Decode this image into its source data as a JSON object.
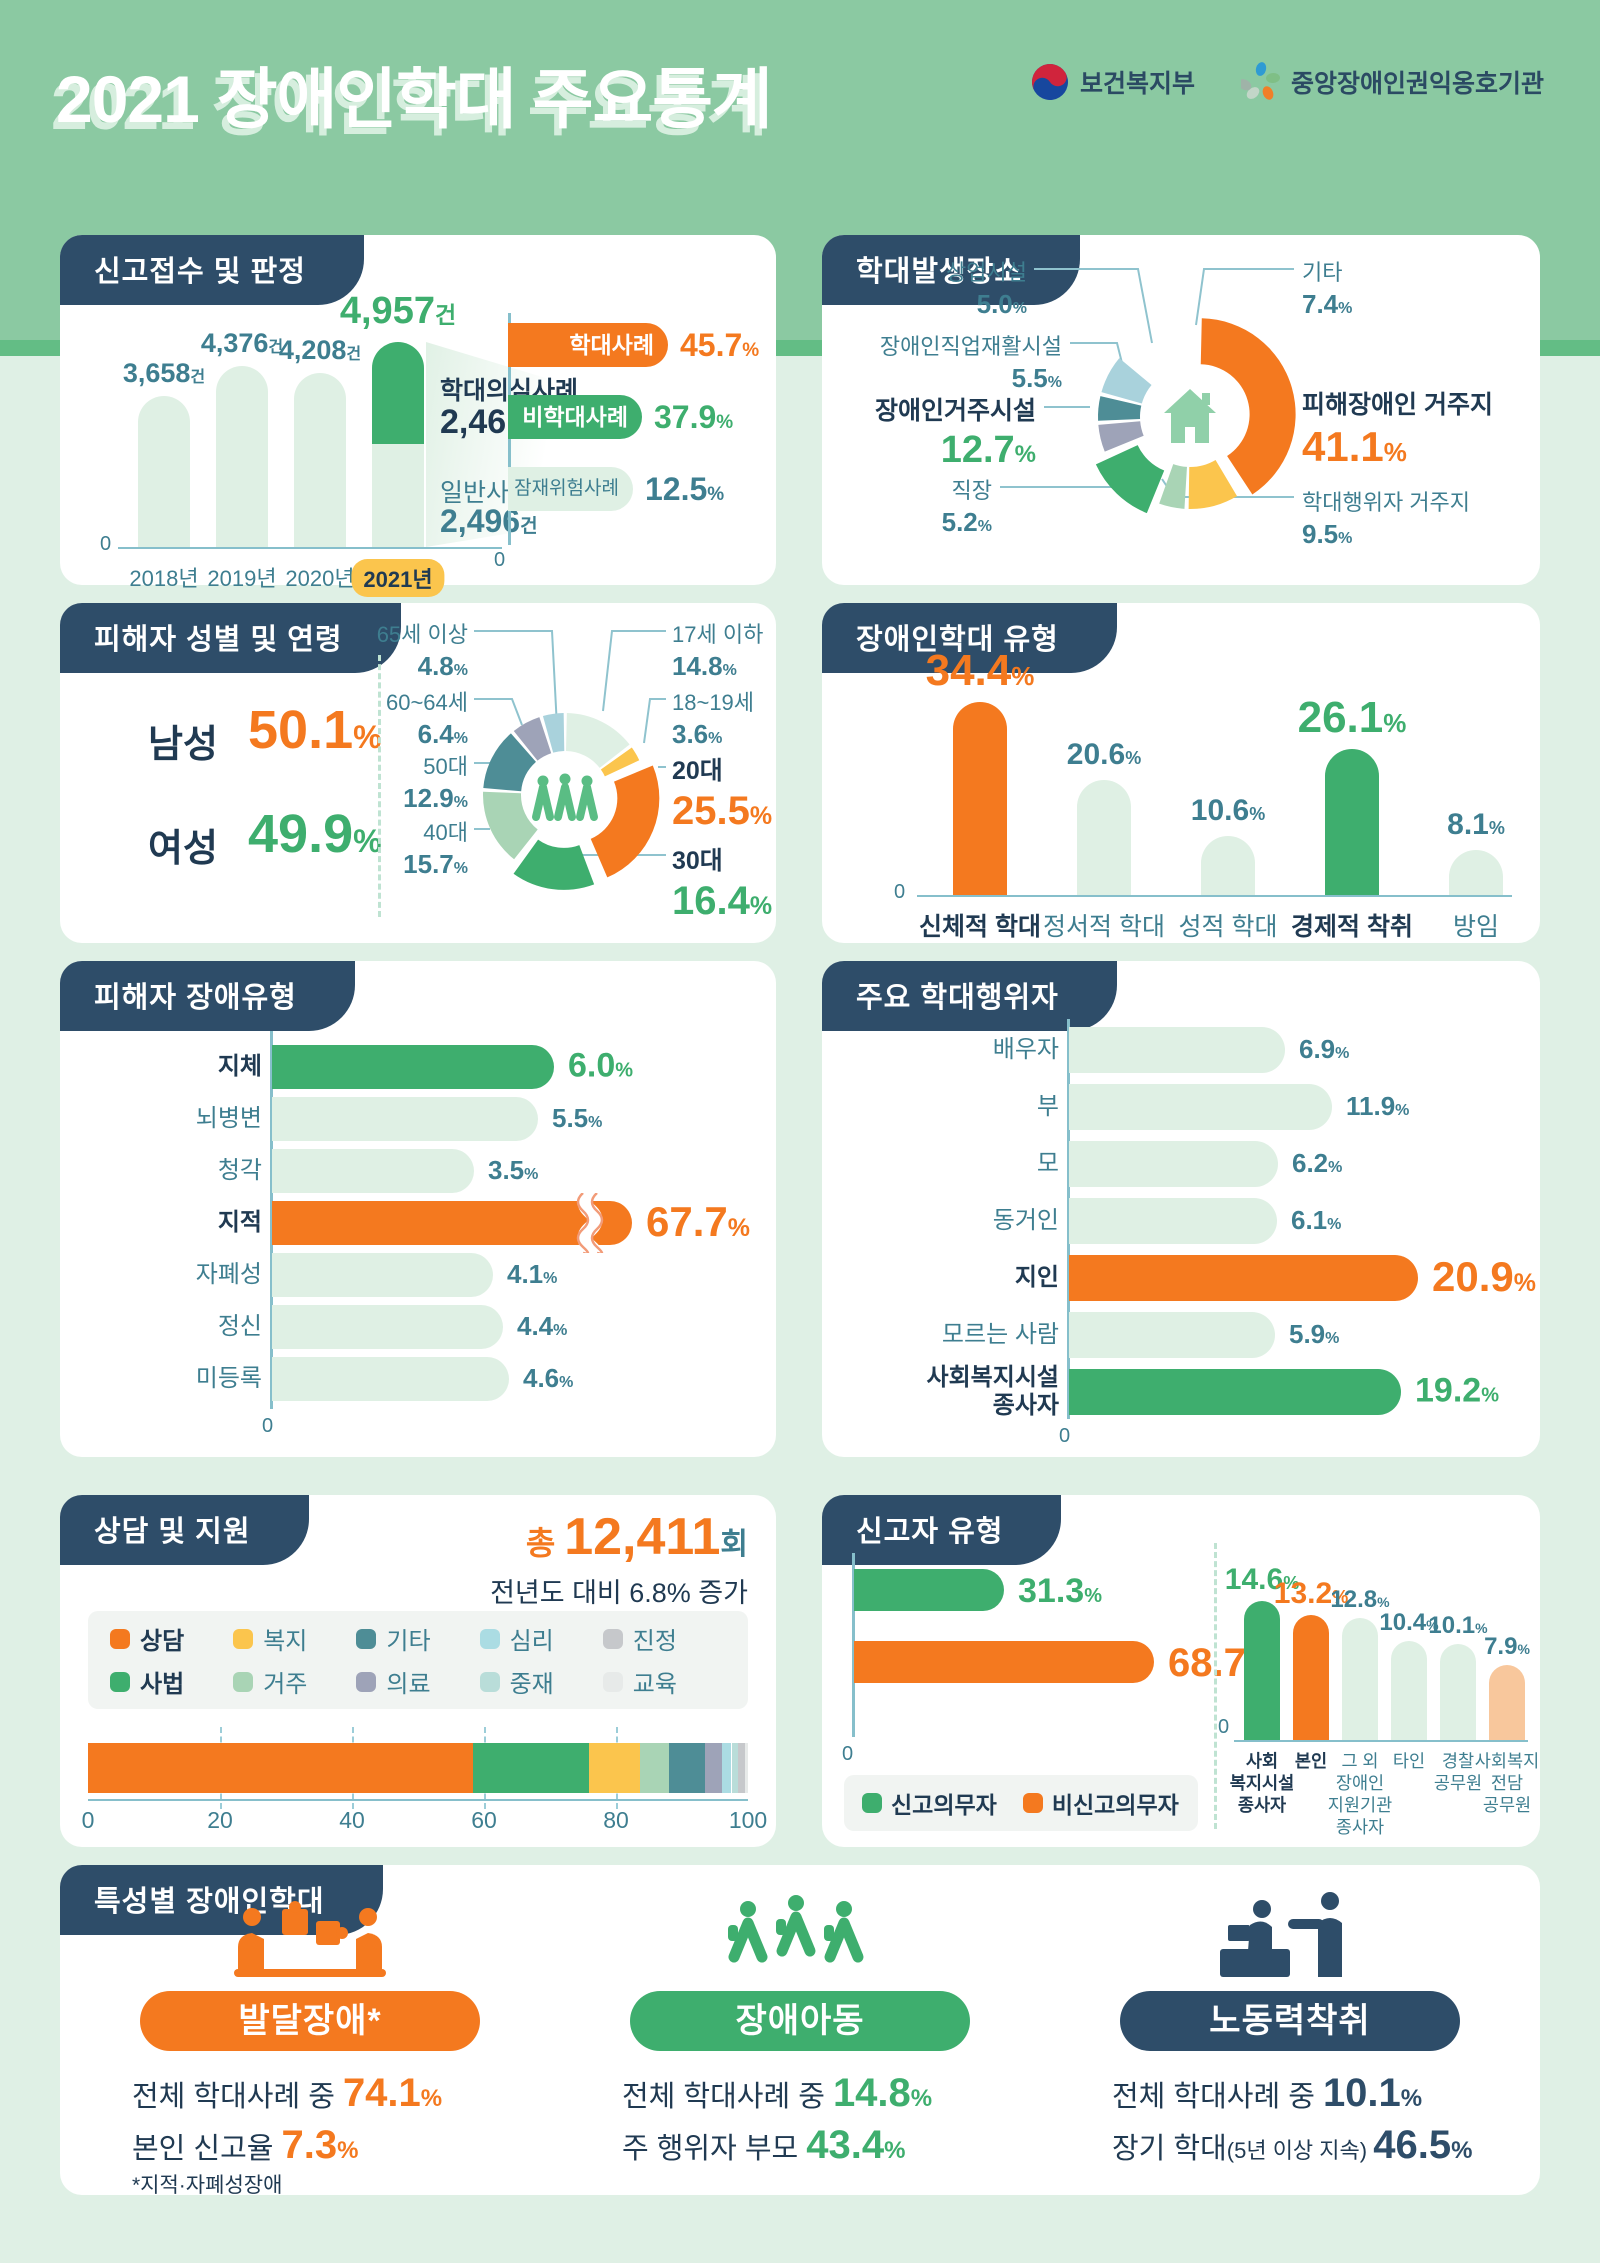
{
  "page": {
    "title_year": "2021",
    "title": "장애인학대 주요통계",
    "logo1": "보건복지부",
    "logo2": "중앙장애인권익옹호기관"
  },
  "colors": {
    "orange": "#F4791F",
    "green": "#3EAE6E",
    "light": "#DFF0E4",
    "sage": "#A9D4B5",
    "yellow": "#FBC54D",
    "teal_dark": "#4E8D96",
    "gray_purple": "#9EA3B8",
    "light_blue": "#A9D2DC",
    "light_cyan": "#ABDCE3",
    "light_teal": "#B9DDD9",
    "gray": "#C6C8CB",
    "pale": "#E7EAE9",
    "peach": "#F8C79C",
    "navy": "#2E4D69",
    "ink": "#203A52",
    "teal_text": "#3E7E90",
    "axis": "#86BFCB",
    "legend_bg": "#F1F4F2",
    "band": "#8BC9A2",
    "page_bg": "#DFF0E5"
  },
  "panels": {
    "report": "신고접수 및 판정",
    "place": "학대발생장소",
    "victim": "피해자 성별 및 연령",
    "types": "장애인학대 유형",
    "disability": "피해자 장애유형",
    "abuser": "주요 학대행위자",
    "counsel": "상담 및 지원",
    "reporter": "신고자 유형",
    "special": "특성별 장애인학대"
  },
  "chart_data": [
    {
      "id": "report_trend",
      "type": "bar",
      "title": "신고접수 및 판정",
      "unit": "건",
      "zero": "0",
      "categories": [
        "2018년",
        "2019년",
        "2020년",
        "2021년"
      ],
      "values": [
        3658,
        4376,
        4208,
        4957
      ],
      "value_labels": [
        "3,658",
        "4,376",
        "4,208",
        "4,957"
      ],
      "highlight_index": 3,
      "split": {
        "top_label": "학대의심사례",
        "top_value": 2461,
        "top_value_label": "2,461",
        "bottom_label": "일반사례",
        "bottom_value": 2496,
        "bottom_value_label": "2,496"
      }
    },
    {
      "id": "judgement",
      "type": "bar-h",
      "zero": "0",
      "items": [
        {
          "label": "학대사례",
          "value": 45.7,
          "color": "orange"
        },
        {
          "label": "비학대사례",
          "value": 37.9,
          "color": "green"
        },
        {
          "label": "잠재위험사례",
          "value": 12.5,
          "color": "light"
        }
      ]
    },
    {
      "id": "place",
      "type": "donut",
      "title": "학대발생장소",
      "center_icon": "house",
      "items": [
        {
          "label": "피해장애인 거주지",
          "value": 41.1,
          "color": "orange",
          "emph": true
        },
        {
          "label": "학대행위자 거주지",
          "value": 9.5,
          "color": "yellow"
        },
        {
          "label": "직장",
          "value": 5.2,
          "color": "sage"
        },
        {
          "label": "장애인거주시설",
          "value": 12.7,
          "color": "green",
          "emph": true
        },
        {
          "label": "장애인직업재활시설",
          "value": 5.5,
          "color": "gray_purple"
        },
        {
          "label": "상업시설",
          "value": 5.0,
          "color": "teal_dark"
        },
        {
          "label": "기타",
          "value": 7.4,
          "color": "light_blue"
        }
      ]
    },
    {
      "id": "gender",
      "type": "stat",
      "items": [
        {
          "label": "남성",
          "value": "50.1",
          "color": "orange"
        },
        {
          "label": "여성",
          "value": "49.9",
          "color": "green"
        }
      ]
    },
    {
      "id": "age",
      "type": "donut",
      "center_icon": "people",
      "items": [
        {
          "label": "17세 이하",
          "value": 14.8,
          "color": "light"
        },
        {
          "label": "18~19세",
          "value": 3.6,
          "color": "yellow"
        },
        {
          "label": "20대",
          "value": 25.5,
          "color": "orange",
          "emph": true
        },
        {
          "label": "30대",
          "value": 16.4,
          "color": "green",
          "emph": true
        },
        {
          "label": "40대",
          "value": 15.7,
          "color": "sage"
        },
        {
          "label": "50대",
          "value": 12.9,
          "color": "teal_dark"
        },
        {
          "label": "60~64세",
          "value": 6.4,
          "color": "gray_purple"
        },
        {
          "label": "65세 이상",
          "value": 4.8,
          "color": "light_blue"
        }
      ]
    },
    {
      "id": "abuse_types",
      "type": "bar",
      "zero": "0",
      "items": [
        {
          "label": "신체적 학대",
          "value": 34.4,
          "color": "orange",
          "emph": true
        },
        {
          "label": "정서적 학대",
          "value": 20.6,
          "color": "light"
        },
        {
          "label": "성적 학대",
          "value": 10.6,
          "color": "light"
        },
        {
          "label": "경제적 착취",
          "value": 26.1,
          "color": "green",
          "emph": true
        },
        {
          "label": "방임",
          "value": 8.1,
          "color": "light"
        }
      ]
    },
    {
      "id": "disability_types",
      "type": "bar-h",
      "zero": "0",
      "items": [
        {
          "label": "지체",
          "value": 6.0,
          "display": "6.0",
          "color": "green",
          "emph": true
        },
        {
          "label": "뇌병변",
          "value": 5.5,
          "display": "5.5",
          "color": "light"
        },
        {
          "label": "청각",
          "value": 3.5,
          "display": "3.5",
          "color": "light"
        },
        {
          "label": "지적",
          "value": 67.7,
          "display": "67.7",
          "color": "orange",
          "emph": true,
          "axis_break": true
        },
        {
          "label": "자폐성",
          "value": 4.1,
          "display": "4.1",
          "color": "light"
        },
        {
          "label": "정신",
          "value": 4.4,
          "display": "4.4",
          "color": "light"
        },
        {
          "label": "미등록",
          "value": 4.6,
          "display": "4.6",
          "color": "light"
        }
      ]
    },
    {
      "id": "abusers",
      "type": "bar-h",
      "zero": "0",
      "items": [
        {
          "label": "배우자",
          "value": 6.9,
          "color": "light"
        },
        {
          "label": "부",
          "value": 11.9,
          "color": "light"
        },
        {
          "label": "모",
          "value": 6.2,
          "color": "light"
        },
        {
          "label": "동거인",
          "value": 6.1,
          "color": "light"
        },
        {
          "label": "지인",
          "value": 20.9,
          "color": "orange",
          "emph": true
        },
        {
          "label": "모르는 사람",
          "value": 5.9,
          "color": "light"
        },
        {
          "label": "사회복지시설 종사자",
          "lines": [
            "사회복지시설",
            "종사자"
          ],
          "value": 19.2,
          "color": "green",
          "emph": true
        }
      ]
    },
    {
      "id": "counsel",
      "type": "stacked-bar",
      "total_prefix": "총",
      "total": "12,411",
      "total_suffix": "회",
      "note": "전년도 대비 6.8% 증가",
      "axis": [
        "0",
        "20",
        "40",
        "60",
        "80",
        "100"
      ],
      "items": [
        {
          "label": "상담",
          "color": "orange",
          "bold": true,
          "value": 58.4
        },
        {
          "label": "사법",
          "color": "green",
          "bold": true,
          "value": 17.5
        },
        {
          "label": "복지",
          "color": "yellow",
          "value": 7.7
        },
        {
          "label": "거주",
          "color": "sage",
          "value": 4.5
        },
        {
          "label": "기타",
          "color": "teal_dark",
          "value": 5.4
        },
        {
          "label": "의료",
          "color": "gray_purple",
          "value": 2.5
        },
        {
          "label": "심리",
          "color": "light_cyan",
          "value": 1.5
        },
        {
          "label": "중재",
          "color": "light_teal",
          "value": 1.0
        },
        {
          "label": "진정",
          "color": "gray",
          "value": 1.0
        },
        {
          "label": "교육",
          "color": "pale",
          "value": 0.5
        }
      ]
    },
    {
      "id": "reporter",
      "type": "mixed",
      "zero": "0",
      "bars": [
        {
          "label": "신고의무자",
          "value": 31.3,
          "color": "green"
        },
        {
          "label": "비신고의무자",
          "value": 68.7,
          "color": "orange"
        }
      ],
      "columns": [
        {
          "lines": [
            "사회",
            "복지시설",
            "종사자"
          ],
          "value": 14.6,
          "display": "14.6",
          "color": "green",
          "emph": true
        },
        {
          "lines": [
            "본인"
          ],
          "value": 13.2,
          "display": "13.2",
          "color": "orange",
          "emph": true
        },
        {
          "lines": [
            "그 외",
            "장애인",
            "지원기관",
            "종사자"
          ],
          "value": 12.8,
          "display": "12.8",
          "color": "light"
        },
        {
          "lines": [
            "타인"
          ],
          "value": 10.4,
          "display": "10.4",
          "color": "light"
        },
        {
          "lines": [
            "경찰",
            "공무원"
          ],
          "value": 10.1,
          "display": "10.1",
          "color": "light"
        },
        {
          "lines": [
            "사회복지",
            "전담",
            "공무원"
          ],
          "value": 7.9,
          "display": "7.9",
          "color": "peach"
        }
      ]
    },
    {
      "id": "special",
      "type": "cards",
      "cards": [
        {
          "pill": "발달장애*",
          "color": "orange",
          "icon": "puzzle-people",
          "rows": [
            {
              "prefix": "전체 학대사례 중 ",
              "value": "74.1",
              "unit": "%"
            },
            {
              "prefix": "본인 신고율 ",
              "value": "7.3",
              "unit": "%"
            }
          ],
          "footnote": "*지적·자폐성장애"
        },
        {
          "pill": "장애아동",
          "color": "green",
          "icon": "children",
          "rows": [
            {
              "prefix": "전체 학대사례 중 ",
              "value": "14.8",
              "unit": "%"
            },
            {
              "prefix": "주 행위자 부모 ",
              "value": "43.4",
              "unit": "%"
            }
          ]
        },
        {
          "pill": "노동력착취",
          "color": "navy",
          "icon": "labor",
          "rows": [
            {
              "prefix": "전체 학대사례 중 ",
              "value": "10.1",
              "unit": "%"
            },
            {
              "prefix": "장기 학대",
              "small": "(5년 이상 지속) ",
              "value": "46.5",
              "unit": "%"
            }
          ]
        }
      ]
    }
  ]
}
